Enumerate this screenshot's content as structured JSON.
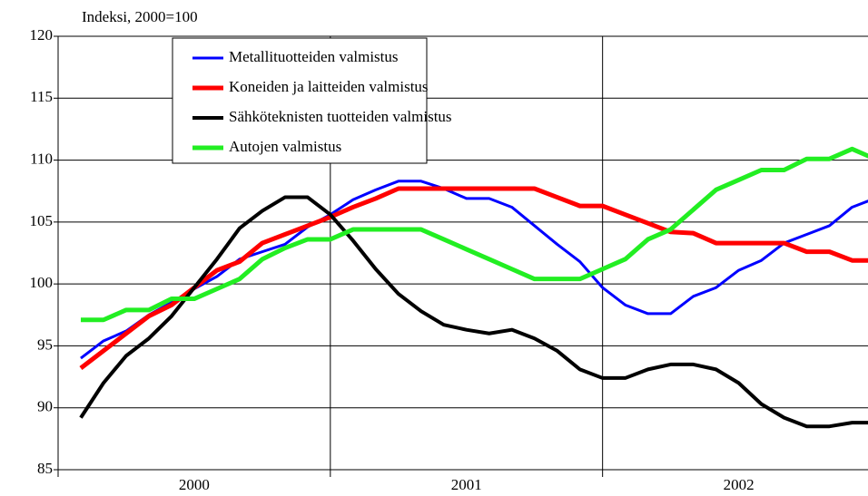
{
  "chart_data": {
    "type": "line",
    "y_label": "Indeksi, 2000=100",
    "x": [
      1,
      2,
      3,
      4,
      5,
      6,
      7,
      8,
      9,
      10,
      11,
      12,
      13,
      14,
      15,
      16,
      17,
      18,
      19,
      20,
      21,
      22,
      23,
      24,
      25,
      26,
      27,
      28,
      29,
      30,
      31,
      32,
      33,
      34,
      35,
      36
    ],
    "xlim": [
      0,
      35.7
    ],
    "xticks": [
      {
        "value": 6,
        "label": "2000"
      },
      {
        "value": 18,
        "label": "2001"
      },
      {
        "value": 30,
        "label": "2002"
      }
    ],
    "year_boundaries": [
      0,
      12,
      24
    ],
    "ylim": [
      85,
      120
    ],
    "yticks": [
      85,
      90,
      95,
      100,
      105,
      110,
      115,
      120
    ],
    "grid": true,
    "series": [
      {
        "name": "Metallituotteiden valmistus",
        "color": "#0000ff",
        "width": 3,
        "values": [
          94,
          95.4,
          96.2,
          97.5,
          98.5,
          99.6,
          100.6,
          102,
          102.6,
          103.2,
          104.6,
          105.6,
          106.8,
          107.6,
          108.3,
          108.3,
          107.7,
          106.9,
          106.9,
          106.2,
          104.7,
          103.2,
          101.8,
          99.7,
          98.3,
          97.6,
          97.6,
          99,
          99.7,
          101.1,
          101.9,
          103.3,
          104,
          104.7,
          106.2,
          106.9
        ]
      },
      {
        "name": "Koneiden ja laitteiden valmistus",
        "color": "#ff0000",
        "width": 5,
        "values": [
          93.2,
          94.6,
          96,
          97.4,
          98.3,
          99.7,
          101.1,
          101.8,
          103.3,
          104,
          104.7,
          105.4,
          106.2,
          106.9,
          107.7,
          107.7,
          107.7,
          107.7,
          107.7,
          107.7,
          107.7,
          107,
          106.3,
          106.3,
          105.6,
          104.9,
          104.2,
          104.1,
          103.3,
          103.3,
          103.3,
          103.3,
          102.6,
          102.6,
          101.9,
          101.9
        ]
      },
      {
        "name": "Sähköteknisten tuotteiden valmistus",
        "color": "#000000",
        "width": 4,
        "values": [
          89.2,
          92,
          94.2,
          95.6,
          97.4,
          99.7,
          102,
          104.5,
          105.9,
          107,
          107,
          105.6,
          103.5,
          101.2,
          99.2,
          97.8,
          96.7,
          96.3,
          96,
          96.3,
          95.6,
          94.6,
          93.1,
          92.4,
          92.4,
          93.1,
          93.5,
          93.5,
          93.1,
          92,
          90.3,
          89.2,
          88.5,
          88.5,
          88.8,
          88.8
        ]
      },
      {
        "name": "Autojen valmistus",
        "color": "#22ee22",
        "width": 5,
        "values": [
          97.1,
          97.1,
          97.9,
          97.9,
          98.8,
          98.8,
          99.6,
          100.4,
          102,
          102.9,
          103.6,
          103.6,
          104.4,
          104.4,
          104.4,
          104.4,
          103.6,
          102.8,
          102,
          101.2,
          100.4,
          100.4,
          100.4,
          101.2,
          102,
          103.6,
          104.4,
          106,
          107.6,
          108.4,
          109.2,
          109.2,
          110.1,
          110.1,
          110.9,
          110.1
        ]
      }
    ]
  }
}
